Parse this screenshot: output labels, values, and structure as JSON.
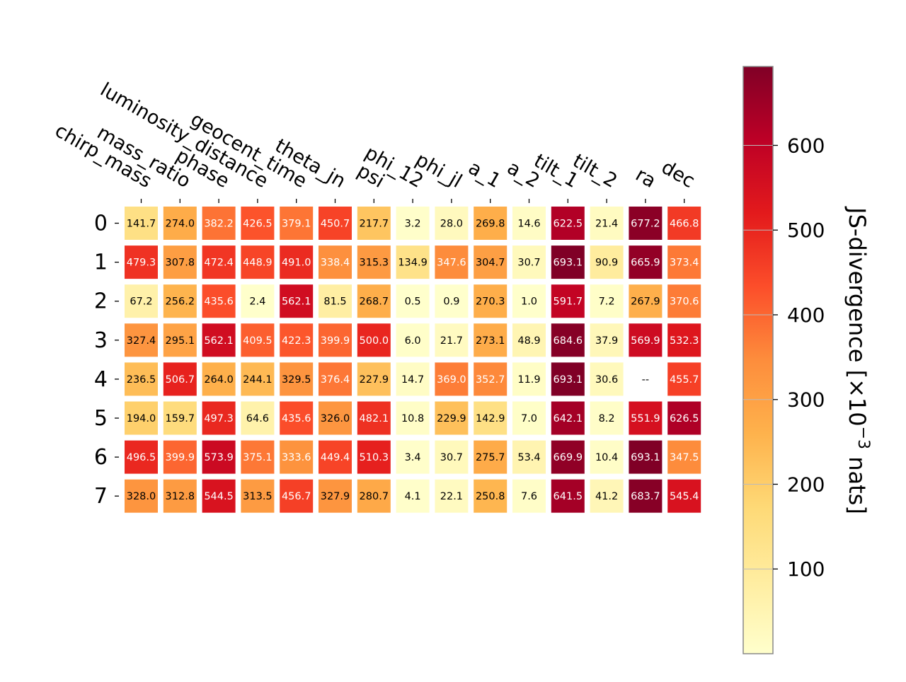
{
  "chart_data": {
    "type": "heatmap",
    "columns": [
      "chirp_mass",
      "mass_ratio",
      "phase",
      "luminosity_distance",
      "geocent_time",
      "theta_jn",
      "psi",
      "phi_12",
      "phi_jl",
      "a_1",
      "a_2",
      "tilt_1",
      "tilt_2",
      "ra",
      "dec"
    ],
    "rows": [
      "0",
      "1",
      "2",
      "3",
      "4",
      "5",
      "6",
      "7"
    ],
    "values": [
      [
        141.7,
        274.0,
        382.2,
        426.5,
        379.1,
        450.7,
        217.7,
        3.2,
        28.0,
        269.8,
        14.6,
        622.5,
        21.4,
        677.2,
        466.8
      ],
      [
        479.3,
        307.8,
        472.4,
        448.9,
        491.0,
        338.4,
        315.3,
        134.9,
        347.6,
        304.7,
        30.7,
        693.1,
        90.9,
        665.9,
        373.4
      ],
      [
        67.2,
        256.2,
        435.6,
        2.4,
        562.1,
        81.5,
        268.7,
        0.5,
        0.9,
        270.3,
        1.0,
        591.7,
        7.2,
        267.9,
        370.6
      ],
      [
        327.4,
        295.1,
        562.1,
        409.5,
        422.3,
        399.9,
        500.0,
        6.0,
        21.7,
        273.1,
        48.9,
        684.6,
        37.9,
        569.9,
        532.3
      ],
      [
        236.5,
        506.7,
        264.0,
        244.1,
        329.5,
        376.4,
        227.9,
        14.7,
        369.0,
        352.7,
        11.9,
        693.1,
        30.6,
        null,
        455.7
      ],
      [
        194.0,
        159.7,
        497.3,
        64.6,
        435.6,
        326.0,
        482.1,
        10.8,
        229.9,
        142.9,
        7.0,
        642.1,
        8.2,
        551.9,
        626.5
      ],
      [
        496.5,
        399.9,
        573.9,
        375.1,
        333.6,
        449.4,
        510.3,
        3.4,
        30.7,
        275.7,
        53.4,
        669.9,
        10.4,
        693.1,
        347.5
      ],
      [
        328.0,
        312.8,
        544.5,
        313.5,
        456.7,
        327.9,
        280.7,
        4.1,
        22.1,
        250.8,
        7.6,
        641.5,
        41.2,
        683.7,
        545.4
      ]
    ],
    "missing_label": "--",
    "colormap": "YlOrRd",
    "vmin": 0,
    "vmax": 693.1,
    "colorbar": {
      "label": "JS-divergence [×10",
      "label_exponent": "−3",
      "label_suffix": " nats]",
      "ticks": [
        100,
        200,
        300,
        400,
        500,
        600
      ],
      "tick_labels": [
        "100",
        "200",
        "300",
        "400",
        "500",
        "600"
      ]
    },
    "grid": false
  },
  "colors": {
    "ramp": [
      "#ffffcc",
      "#ffeda0",
      "#fed976",
      "#feb24c",
      "#fd8d3c",
      "#fc4e2a",
      "#e31a1c",
      "#bd0026",
      "#800026"
    ],
    "dark_text": "#000000",
    "light_text": "#ffffff"
  }
}
